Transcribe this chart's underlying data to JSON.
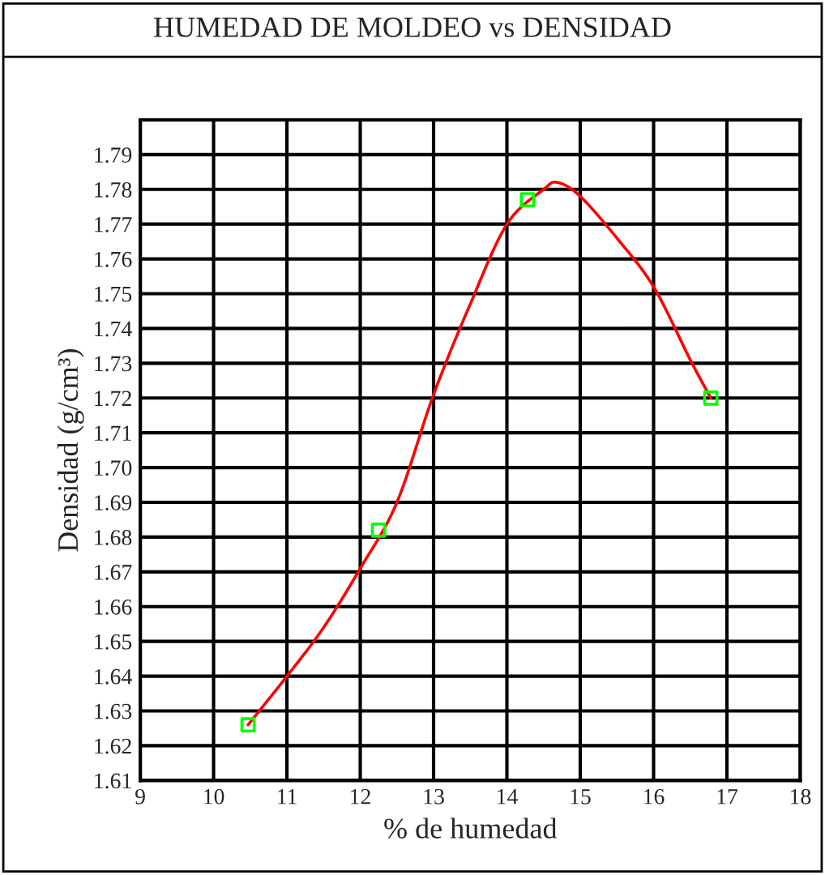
{
  "chart_data": {
    "type": "scatter",
    "title": "HUMEDAD DE MOLDEO vs DENSIDAD",
    "xlabel": "% de humedad",
    "ylabel": "Densidad (g/cm³)",
    "xlim": [
      9,
      18
    ],
    "xticks": [
      9,
      10,
      11,
      12,
      13,
      14,
      15,
      16,
      17,
      18
    ],
    "ylim": [
      1.61,
      1.8
    ],
    "yticks": [
      1.61,
      1.62,
      1.63,
      1.64,
      1.65,
      1.66,
      1.67,
      1.68,
      1.69,
      {
        "value": 1.7,
        "label": "1.70"
      },
      1.71,
      1.72,
      1.73,
      1.74,
      1.75,
      1.76,
      1.77,
      1.78,
      1.79,
      {
        "value": 1.8,
        "label": null
      }
    ],
    "grid": true,
    "legend": false,
    "series": [
      {
        "type": "line",
        "color": "#ff0000",
        "marker": "none",
        "line_style": "solid",
        "x": [
          10.47,
          11,
          11.5,
          12,
          12.5,
          13,
          13.5,
          14,
          14.5,
          14.69,
          15,
          15.5,
          16,
          16.5,
          16.78
        ],
        "values": [
          1.626,
          1.64,
          1.654,
          1.671,
          1.69,
          1.721,
          1.747,
          1.77,
          1.78,
          1.782,
          1.778,
          1.766,
          1.752,
          1.731,
          1.72
        ]
      },
      {
        "color": "#00ff00",
        "marker": "square",
        "x": [
          10.47,
          12.25,
          14.28,
          16.78
        ],
        "values": [
          1.626,
          1.682,
          1.777,
          1.72
        ]
      }
    ]
  }
}
